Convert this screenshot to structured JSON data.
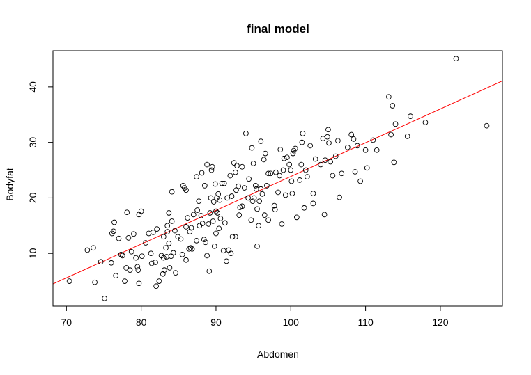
{
  "chart_data": {
    "type": "scatter",
    "title": "final model",
    "xlabel": "Abdomen",
    "ylabel": "Bodyfat",
    "xlim": [
      68.2,
      128.3
    ],
    "ylim": [
      0.5,
      46.5
    ],
    "xticks": [
      70,
      80,
      90,
      100,
      110,
      120
    ],
    "yticks": [
      10,
      20,
      30,
      40
    ],
    "grid": false,
    "colors": {
      "points": "#000000",
      "fit_line": "#ff0000",
      "box": "#000000"
    },
    "fit_line": {
      "intercept": -37.0,
      "slope": 0.6085
    },
    "points": [
      [
        70.4,
        5.0
      ],
      [
        72.8,
        10.6
      ],
      [
        73.6,
        11.0
      ],
      [
        73.8,
        4.8
      ],
      [
        74.6,
        8.5
      ],
      [
        75.1,
        1.9
      ],
      [
        76.0,
        8.3
      ],
      [
        76.1,
        13.6
      ],
      [
        76.3,
        14.0
      ],
      [
        76.4,
        15.6
      ],
      [
        76.6,
        6.0
      ],
      [
        77.0,
        12.7
      ],
      [
        77.3,
        9.8
      ],
      [
        77.5,
        9.6
      ],
      [
        77.8,
        5.0
      ],
      [
        78.0,
        7.4
      ],
      [
        78.1,
        17.4
      ],
      [
        78.3,
        12.8
      ],
      [
        78.5,
        7.0
      ],
      [
        78.7,
        10.3
      ],
      [
        79.0,
        13.5
      ],
      [
        79.3,
        9.2
      ],
      [
        79.5,
        7.6
      ],
      [
        79.6,
        7.0
      ],
      [
        79.7,
        4.6
      ],
      [
        79.7,
        17.0
      ],
      [
        80.0,
        17.6
      ],
      [
        80.1,
        9.5
      ],
      [
        80.6,
        11.9
      ],
      [
        81.0,
        13.6
      ],
      [
        81.3,
        10.0
      ],
      [
        81.4,
        8.2
      ],
      [
        81.6,
        13.8
      ],
      [
        81.9,
        8.4
      ],
      [
        82.0,
        4.1
      ],
      [
        82.1,
        14.4
      ],
      [
        82.4,
        5.0
      ],
      [
        82.7,
        9.6
      ],
      [
        82.9,
        6.3
      ],
      [
        83.0,
        13.0
      ],
      [
        83.0,
        9.2
      ],
      [
        83.1,
        7.0
      ],
      [
        83.3,
        11.0
      ],
      [
        83.4,
        9.4
      ],
      [
        83.5,
        15.0
      ],
      [
        83.5,
        13.9
      ],
      [
        83.7,
        17.3
      ],
      [
        83.7,
        11.8
      ],
      [
        83.8,
        7.4
      ],
      [
        84.0,
        9.5
      ],
      [
        84.1,
        15.8
      ],
      [
        84.1,
        21.1
      ],
      [
        84.3,
        10.1
      ],
      [
        84.5,
        14.1
      ],
      [
        84.6,
        6.5
      ],
      [
        84.9,
        13.0
      ],
      [
        85.3,
        12.6
      ],
      [
        85.5,
        9.8
      ],
      [
        85.6,
        22.2
      ],
      [
        85.8,
        21.8
      ],
      [
        86.0,
        21.4
      ],
      [
        86.0,
        14.8
      ],
      [
        86.0,
        8.8
      ],
      [
        86.2,
        16.4
      ],
      [
        86.4,
        10.8
      ],
      [
        86.5,
        13.9
      ],
      [
        86.6,
        11.0
      ],
      [
        86.7,
        14.6
      ],
      [
        86.8,
        10.8
      ],
      [
        87.0,
        17.0
      ],
      [
        87.4,
        12.3
      ],
      [
        87.4,
        23.8
      ],
      [
        87.5,
        17.8
      ],
      [
        87.7,
        19.4
      ],
      [
        87.8,
        15.0
      ],
      [
        88.0,
        16.8
      ],
      [
        88.1,
        24.5
      ],
      [
        88.2,
        15.4
      ],
      [
        88.4,
        12.5
      ],
      [
        88.5,
        22.2
      ],
      [
        88.6,
        12.0
      ],
      [
        88.8,
        9.6
      ],
      [
        88.8,
        26.0
      ],
      [
        89.0,
        15.3
      ],
      [
        89.1,
        6.8
      ],
      [
        89.2,
        17.3
      ],
      [
        89.3,
        20.0
      ],
      [
        89.4,
        25.0
      ],
      [
        89.5,
        25.6
      ],
      [
        89.6,
        15.8
      ],
      [
        89.7,
        19.3
      ],
      [
        89.8,
        11.3
      ],
      [
        89.9,
        22.5
      ],
      [
        90.0,
        13.6
      ],
      [
        90.0,
        17.6
      ],
      [
        90.1,
        20.0
      ],
      [
        90.2,
        17.3
      ],
      [
        90.3,
        20.7
      ],
      [
        90.4,
        14.5
      ],
      [
        90.5,
        19.6
      ],
      [
        90.6,
        16.3
      ],
      [
        90.8,
        22.6
      ],
      [
        91.0,
        10.5
      ],
      [
        91.1,
        22.6
      ],
      [
        91.2,
        15.5
      ],
      [
        91.4,
        8.6
      ],
      [
        91.5,
        20.0
      ],
      [
        91.7,
        10.6
      ],
      [
        91.9,
        24.0
      ],
      [
        92.0,
        10.0
      ],
      [
        92.1,
        20.3
      ],
      [
        92.2,
        13.0
      ],
      [
        92.4,
        26.3
      ],
      [
        92.6,
        24.6
      ],
      [
        92.6,
        13.0
      ],
      [
        92.7,
        21.4
      ],
      [
        92.8,
        25.8
      ],
      [
        93.0,
        22.1
      ],
      [
        93.1,
        16.9
      ],
      [
        93.2,
        18.3
      ],
      [
        93.5,
        18.5
      ],
      [
        93.5,
        25.6
      ],
      [
        93.8,
        21.8
      ],
      [
        94.0,
        31.6
      ],
      [
        94.3,
        20.0
      ],
      [
        94.4,
        23.4
      ],
      [
        94.7,
        16.0
      ],
      [
        94.8,
        29.0
      ],
      [
        94.9,
        19.4
      ],
      [
        95.0,
        26.2
      ],
      [
        95.1,
        20.0
      ],
      [
        95.3,
        22.2
      ],
      [
        95.4,
        21.6
      ],
      [
        95.5,
        11.3
      ],
      [
        95.5,
        18.0
      ],
      [
        95.7,
        15.0
      ],
      [
        95.8,
        19.4
      ],
      [
        96.0,
        30.2
      ],
      [
        96.0,
        21.6
      ],
      [
        96.2,
        20.7
      ],
      [
        96.4,
        26.9
      ],
      [
        96.5,
        16.9
      ],
      [
        96.6,
        28.0
      ],
      [
        96.8,
        22.2
      ],
      [
        97.0,
        16.0
      ],
      [
        97.0,
        24.4
      ],
      [
        97.3,
        24.4
      ],
      [
        97.8,
        18.6
      ],
      [
        97.9,
        17.9
      ],
      [
        98.0,
        24.6
      ],
      [
        98.3,
        21.0
      ],
      [
        98.5,
        24.0
      ],
      [
        98.6,
        28.7
      ],
      [
        98.8,
        15.3
      ],
      [
        99.0,
        25.0
      ],
      [
        99.1,
        27.1
      ],
      [
        99.3,
        20.5
      ],
      [
        99.5,
        27.3
      ],
      [
        99.8,
        26.0
      ],
      [
        100.0,
        25.0
      ],
      [
        100.1,
        23.0
      ],
      [
        100.2,
        20.8
      ],
      [
        100.3,
        28.0
      ],
      [
        100.4,
        28.5
      ],
      [
        100.6,
        28.9
      ],
      [
        100.8,
        16.5
      ],
      [
        101.2,
        23.2
      ],
      [
        101.4,
        26.0
      ],
      [
        101.5,
        30.0
      ],
      [
        101.6,
        31.6
      ],
      [
        101.8,
        18.2
      ],
      [
        102.0,
        25.0
      ],
      [
        102.2,
        23.8
      ],
      [
        102.6,
        29.4
      ],
      [
        103.0,
        19.0
      ],
      [
        103.0,
        20.8
      ],
      [
        103.3,
        27.0
      ],
      [
        104.0,
        26.0
      ],
      [
        104.3,
        30.7
      ],
      [
        104.5,
        17.0
      ],
      [
        104.6,
        26.8
      ],
      [
        104.9,
        31.0
      ],
      [
        105.0,
        32.3
      ],
      [
        105.1,
        29.9
      ],
      [
        105.3,
        26.5
      ],
      [
        105.6,
        24.0
      ],
      [
        106.0,
        27.5
      ],
      [
        106.3,
        30.3
      ],
      [
        106.5,
        20.1
      ],
      [
        106.8,
        24.4
      ],
      [
        107.6,
        29.1
      ],
      [
        108.1,
        31.4
      ],
      [
        108.4,
        30.6
      ],
      [
        108.6,
        24.7
      ],
      [
        108.9,
        29.4
      ],
      [
        109.3,
        23.0
      ],
      [
        110.0,
        28.6
      ],
      [
        110.2,
        25.4
      ],
      [
        111.0,
        30.4
      ],
      [
        111.5,
        28.6
      ],
      [
        113.1,
        38.2
      ],
      [
        113.4,
        31.4
      ],
      [
        113.6,
        36.6
      ],
      [
        113.8,
        26.4
      ],
      [
        114.0,
        33.3
      ],
      [
        115.6,
        31.1
      ],
      [
        116.0,
        34.7
      ],
      [
        118.0,
        33.6
      ],
      [
        122.1,
        45.1
      ],
      [
        126.2,
        33.0
      ]
    ]
  }
}
